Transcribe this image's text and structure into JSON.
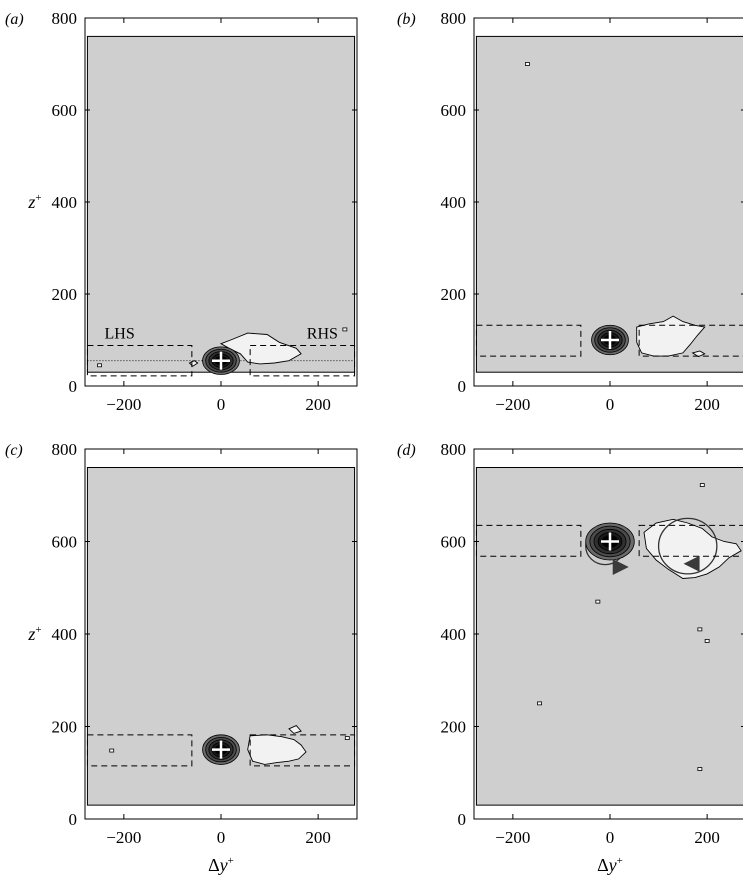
{
  "chart_data": [
    {
      "type": "contour",
      "panel_label": "(a)",
      "xlim": [
        -280,
        280
      ],
      "ylim": [
        0,
        800
      ],
      "xticks": [
        -200,
        0,
        200
      ],
      "yticks": [
        0,
        200,
        400,
        600,
        800
      ],
      "xlabel": "",
      "ylabel": "z+",
      "domain_box": {
        "x": [
          -275,
          275
        ],
        "y": [
          30,
          760
        ]
      },
      "reference_point": {
        "x": 0,
        "y": 55
      },
      "reference_z_line": 55,
      "regions": [
        {
          "label": "LHS",
          "x": [
            -275,
            -60
          ],
          "y": [
            22,
            88
          ]
        },
        {
          "label": "RHS",
          "x": [
            60,
            275
          ],
          "y": [
            22,
            88
          ]
        }
      ],
      "dark_blobs": [
        {
          "x": 0,
          "y": 55,
          "rx": 38,
          "ry": 30
        }
      ],
      "light_blobs": [
        {
          "points": [
            [
              0,
              92
            ],
            [
              20,
              100
            ],
            [
              55,
              115
            ],
            [
              95,
              112
            ],
            [
              120,
              95
            ],
            [
              155,
              82
            ],
            [
              165,
              70
            ],
            [
              140,
              55
            ],
            [
              110,
              50
            ],
            [
              80,
              48
            ],
            [
              55,
              52
            ],
            [
              40,
              70
            ],
            [
              20,
              80
            ],
            [
              0,
              92
            ]
          ]
        },
        {
          "points": [
            [
              -65,
              50
            ],
            [
              -55,
              55
            ],
            [
              -48,
              50
            ],
            [
              -58,
              43
            ],
            [
              -65,
              50
            ]
          ]
        }
      ],
      "specks": [
        {
          "x": -250,
          "y": 45
        },
        {
          "x": 255,
          "y": 123
        }
      ]
    },
    {
      "type": "contour",
      "panel_label": "(b)",
      "xlim": [
        -280,
        280
      ],
      "ylim": [
        0,
        800
      ],
      "xticks": [
        -200,
        0,
        200
      ],
      "yticks": [
        0,
        200,
        400,
        600,
        800
      ],
      "xlabel": "",
      "ylabel": "",
      "domain_box": {
        "x": [
          -275,
          275
        ],
        "y": [
          30,
          760
        ]
      },
      "reference_point": {
        "x": 0,
        "y": 100
      },
      "regions": [
        {
          "label": "",
          "x": [
            -275,
            -60
          ],
          "y": [
            65,
            132
          ]
        },
        {
          "label": "",
          "x": [
            60,
            275
          ],
          "y": [
            65,
            132
          ]
        }
      ],
      "dark_blobs": [
        {
          "x": 0,
          "y": 100,
          "rx": 38,
          "ry": 32
        }
      ],
      "light_blobs": [
        {
          "points": [
            [
              55,
              128
            ],
            [
              80,
              135
            ],
            [
              110,
              140
            ],
            [
              130,
              152
            ],
            [
              150,
              140
            ],
            [
              175,
              132
            ],
            [
              195,
              128
            ],
            [
              180,
              110
            ],
            [
              165,
              90
            ],
            [
              150,
              72
            ],
            [
              120,
              65
            ],
            [
              90,
              65
            ],
            [
              65,
              72
            ],
            [
              55,
              95
            ],
            [
              55,
              128
            ]
          ]
        },
        {
          "points": [
            [
              170,
              72
            ],
            [
              185,
              76
            ],
            [
              195,
              70
            ],
            [
              182,
              64
            ],
            [
              170,
              72
            ]
          ]
        }
      ],
      "specks": [
        {
          "x": -170,
          "y": 700
        }
      ]
    },
    {
      "type": "contour",
      "panel_label": "(c)",
      "xlim": [
        -280,
        280
      ],
      "ylim": [
        0,
        800
      ],
      "xticks": [
        -200,
        0,
        200
      ],
      "yticks": [
        0,
        200,
        400,
        600,
        800
      ],
      "xlabel": "Δy+",
      "ylabel": "z+",
      "domain_box": {
        "x": [
          -275,
          275
        ],
        "y": [
          30,
          760
        ]
      },
      "reference_point": {
        "x": 0,
        "y": 150
      },
      "regions": [
        {
          "label": "",
          "x": [
            -275,
            -60
          ],
          "y": [
            115,
            182
          ]
        },
        {
          "label": "",
          "x": [
            60,
            275
          ],
          "y": [
            115,
            182
          ]
        }
      ],
      "dark_blobs": [
        {
          "x": 0,
          "y": 150,
          "rx": 38,
          "ry": 32
        }
      ],
      "light_blobs": [
        {
          "points": [
            [
              60,
              180
            ],
            [
              95,
              182
            ],
            [
              125,
              178
            ],
            [
              150,
              172
            ],
            [
              165,
              160
            ],
            [
              175,
              145
            ],
            [
              160,
              130
            ],
            [
              140,
              125
            ],
            [
              115,
              122
            ],
            [
              90,
              118
            ],
            [
              65,
              125
            ],
            [
              55,
              150
            ],
            [
              60,
              180
            ]
          ]
        },
        {
          "points": [
            [
              140,
              195
            ],
            [
              155,
              202
            ],
            [
              165,
              190
            ],
            [
              150,
              185
            ],
            [
              140,
              195
            ]
          ]
        }
      ],
      "specks": [
        {
          "x": -225,
          "y": 148
        },
        {
          "x": 260,
          "y": 175
        }
      ]
    },
    {
      "type": "contour",
      "panel_label": "(d)",
      "xlim": [
        -280,
        280
      ],
      "ylim": [
        0,
        800
      ],
      "xticks": [
        -200,
        0,
        200
      ],
      "yticks": [
        0,
        200,
        400,
        600,
        800
      ],
      "xlabel": "Δy+",
      "ylabel": "",
      "domain_box": {
        "x": [
          -275,
          275
        ],
        "y": [
          30,
          760
        ]
      },
      "reference_point": {
        "x": 0,
        "y": 600
      },
      "regions": [
        {
          "label": "",
          "x": [
            -275,
            -60
          ],
          "y": [
            568,
            635
          ]
        },
        {
          "label": "",
          "x": [
            60,
            275
          ],
          "y": [
            568,
            635
          ]
        }
      ],
      "dark_blobs": [
        {
          "x": 0,
          "y": 600,
          "rx": 50,
          "ry": 40
        }
      ],
      "light_blobs": [
        {
          "points": [
            [
              70,
              620
            ],
            [
              95,
              640
            ],
            [
              130,
              648
            ],
            [
              160,
              640
            ],
            [
              190,
              628
            ],
            [
              210,
              610
            ],
            [
              235,
              600
            ],
            [
              260,
              595
            ],
            [
              270,
              580
            ],
            [
              245,
              565
            ],
            [
              225,
              545
            ],
            [
              200,
              530
            ],
            [
              175,
              522
            ],
            [
              150,
              520
            ],
            [
              120,
              540
            ],
            [
              95,
              560
            ],
            [
              75,
              585
            ],
            [
              70,
              620
            ]
          ]
        }
      ],
      "circles": [
        {
          "x": -10,
          "y": 590,
          "r": 40
        },
        {
          "x": 160,
          "y": 590,
          "r": 60
        }
      ],
      "arrows": [
        {
          "x": 20,
          "y": 545,
          "direction": "right"
        },
        {
          "x": 170,
          "y": 552,
          "direction": "left"
        }
      ],
      "specks": [
        {
          "x": -145,
          "y": 250
        },
        {
          "x": 185,
          "y": 410
        },
        {
          "x": 200,
          "y": 385
        },
        {
          "x": 185,
          "y": 108
        },
        {
          "x": 190,
          "y": 722
        },
        {
          "x": -25,
          "y": 470
        }
      ]
    }
  ]
}
